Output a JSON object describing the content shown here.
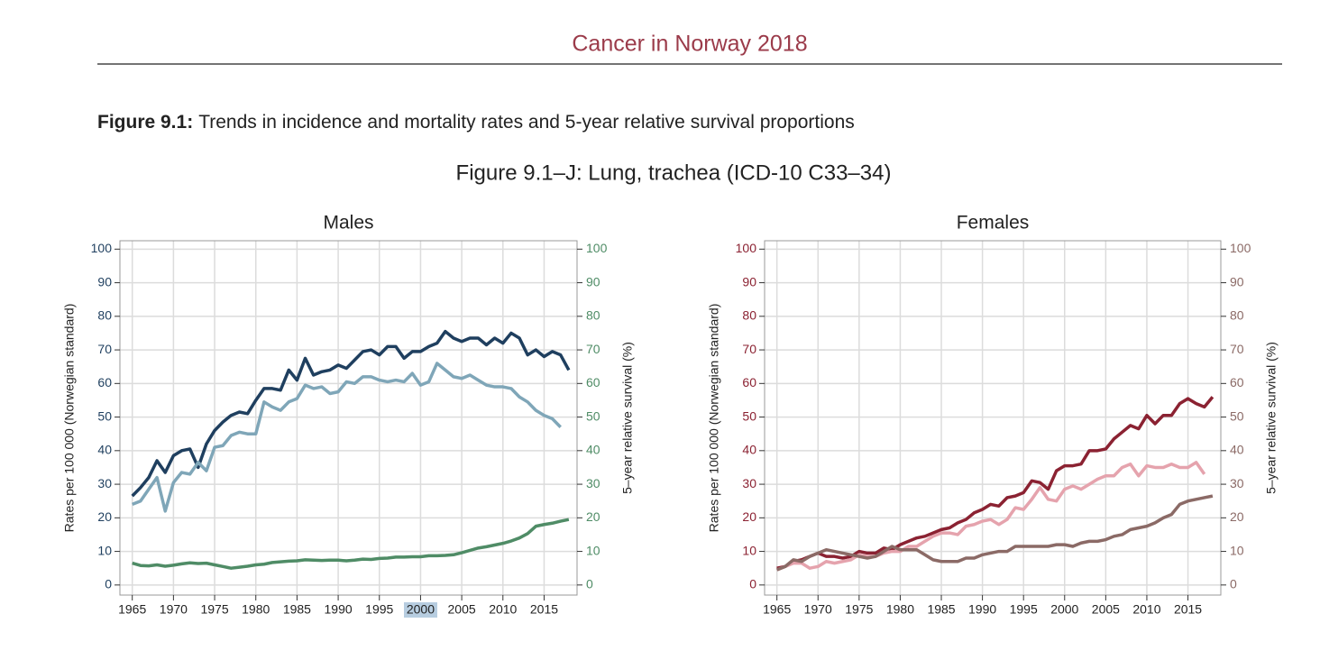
{
  "header": {
    "title": "Cancer in Norway 2018"
  },
  "figure": {
    "label": "Figure 9.1:",
    "caption": "Trends in incidence and mortality rates and 5-year relative survival proportions",
    "subtitle": "Figure 9.1–J: Lung, trachea (ICD-10 C33–34)"
  },
  "chart_data": [
    {
      "type": "line",
      "title": "Males",
      "ylabel": "Rates per 100 000 (Norwegian standard)",
      "y2label": "5–year relative survival (%)",
      "x": [
        1965,
        1966,
        1967,
        1968,
        1969,
        1970,
        1971,
        1972,
        1973,
        1974,
        1975,
        1976,
        1977,
        1978,
        1979,
        1980,
        1981,
        1982,
        1983,
        1984,
        1985,
        1986,
        1987,
        1988,
        1989,
        1990,
        1991,
        1992,
        1993,
        1994,
        1995,
        1996,
        1997,
        1998,
        1999,
        2000,
        2001,
        2002,
        2003,
        2004,
        2005,
        2006,
        2007,
        2008,
        2009,
        2010,
        2011,
        2012,
        2013,
        2014,
        2015,
        2016,
        2017,
        2018
      ],
      "xlim": [
        1963.5,
        2019
      ],
      "xticks": [
        1965,
        1970,
        1975,
        1980,
        1985,
        1990,
        1995,
        2000,
        2005,
        2010,
        2015
      ],
      "ylim": [
        -3,
        102.5
      ],
      "yticks": [
        0,
        10,
        20,
        30,
        40,
        50,
        60,
        70,
        80,
        90,
        100
      ],
      "y2lim": [
        -3,
        102.5
      ],
      "y2ticks": [
        0,
        10,
        20,
        30,
        40,
        50,
        60,
        70,
        80,
        90,
        100
      ],
      "grid": true,
      "series": [
        {
          "color": "#1f3f5f",
          "values": [
            26.5,
            29,
            32,
            37,
            33.5,
            38.5,
            40,
            40.5,
            35,
            42,
            46,
            48.5,
            50.5,
            51.5,
            51,
            55,
            58.5,
            58.5,
            58,
            64,
            61,
            67.5,
            62.5,
            63.5,
            64,
            65.5,
            64.5,
            67,
            69.5,
            70,
            68.5,
            71,
            71,
            67.5,
            69.5,
            69.5,
            71,
            72,
            75.5,
            73.5,
            72.5,
            73.5,
            73.5,
            71.5,
            73.5,
            72,
            75,
            73.5,
            68.5,
            70,
            68,
            69.5,
            68.5,
            64
          ]
        },
        {
          "color": "#7fa6b8",
          "values": [
            24,
            25,
            28.5,
            32,
            22,
            30.5,
            33.5,
            33,
            36.5,
            34,
            41,
            41.5,
            44.5,
            45.5,
            45,
            45,
            54.5,
            53,
            52,
            54.5,
            55.5,
            59.5,
            58.5,
            59,
            57,
            57.5,
            60.5,
            60,
            62,
            62,
            61,
            60.5,
            61,
            60.5,
            63,
            59.5,
            60.5,
            66,
            64,
            62,
            61.5,
            62.5,
            61,
            59.5,
            59,
            59,
            58.5,
            56,
            54.5,
            52,
            50.5,
            49.5,
            47,
            null
          ]
        },
        {
          "color": "#4f8c66",
          "axis": "y2",
          "values": [
            6.5,
            5.8,
            5.7,
            6,
            5.6,
            5.9,
            6.3,
            6.6,
            6.4,
            6.5,
            6,
            5.5,
            5,
            5.3,
            5.6,
            6,
            6.2,
            6.7,
            6.9,
            7.1,
            7.2,
            7.5,
            7.4,
            7.3,
            7.4,
            7.4,
            7.2,
            7.4,
            7.7,
            7.6,
            7.9,
            8,
            8.3,
            8.3,
            8.4,
            8.4,
            8.7,
            8.7,
            8.8,
            9,
            9.6,
            10.3,
            11,
            11.4,
            11.9,
            12.4,
            13.1,
            14,
            15.3,
            17.5,
            18,
            18.4,
            19,
            19.5
          ]
        }
      ]
    },
    {
      "type": "line",
      "title": "Females",
      "ylabel": "Rates per 100 000 (Norwegian standard)",
      "y2label": "5–year relative survival (%)",
      "x": [
        1965,
        1966,
        1967,
        1968,
        1969,
        1970,
        1971,
        1972,
        1973,
        1974,
        1975,
        1976,
        1977,
        1978,
        1979,
        1980,
        1981,
        1982,
        1983,
        1984,
        1985,
        1986,
        1987,
        1988,
        1989,
        1990,
        1991,
        1992,
        1993,
        1994,
        1995,
        1996,
        1997,
        1998,
        1999,
        2000,
        2001,
        2002,
        2003,
        2004,
        2005,
        2006,
        2007,
        2008,
        2009,
        2010,
        2011,
        2012,
        2013,
        2014,
        2015,
        2016,
        2017,
        2018
      ],
      "xlim": [
        1963.5,
        2019
      ],
      "xticks": [
        1965,
        1970,
        1975,
        1980,
        1985,
        1990,
        1995,
        2000,
        2005,
        2010,
        2015
      ],
      "ylim": [
        -3,
        102.5
      ],
      "yticks": [
        0,
        10,
        20,
        30,
        40,
        50,
        60,
        70,
        80,
        90,
        100
      ],
      "y2lim": [
        -3,
        102.5
      ],
      "y2ticks": [
        0,
        10,
        20,
        30,
        40,
        50,
        60,
        70,
        80,
        90,
        100
      ],
      "grid": true,
      "series": [
        {
          "color": "#8b2232",
          "values": [
            5,
            5.5,
            7,
            7.5,
            8.5,
            9.5,
            8.5,
            8.5,
            8,
            8.5,
            10,
            9.5,
            9.5,
            11,
            10.5,
            12,
            13,
            14,
            14.5,
            15.5,
            16.5,
            17,
            18.5,
            19.5,
            21.5,
            22.5,
            24,
            23.5,
            26,
            26.5,
            27.5,
            31,
            30.5,
            28.5,
            34,
            35.5,
            35.5,
            36,
            40,
            40,
            40.5,
            43.5,
            45.5,
            47.5,
            46.5,
            50.5,
            48,
            50.5,
            50.5,
            54,
            55.5,
            54,
            53,
            56
          ]
        },
        {
          "color": "#e5a3ad",
          "values": [
            4.5,
            5.5,
            6.5,
            6.5,
            5,
            5.5,
            7,
            6.5,
            7,
            7.5,
            9,
            8.5,
            8.5,
            9.5,
            10,
            10,
            11.5,
            11.5,
            13,
            14.5,
            15.5,
            15.5,
            15,
            17.5,
            18,
            19,
            19.5,
            18,
            19.5,
            23,
            22.5,
            25.5,
            29,
            25.5,
            25,
            28.5,
            29.5,
            28.5,
            30,
            31.5,
            32.5,
            32.5,
            35,
            36,
            32.5,
            35.5,
            35,
            35,
            36,
            35,
            35,
            36.5,
            33,
            null
          ]
        },
        {
          "color": "#8b6a66",
          "axis": "y2",
          "values": [
            4.5,
            5.5,
            7.5,
            7,
            8.5,
            9.5,
            10.5,
            10,
            9.5,
            9,
            8.5,
            8,
            8.5,
            10,
            11.5,
            10.5,
            10.5,
            10.5,
            9,
            7.5,
            7,
            7,
            7,
            8,
            8,
            9,
            9.5,
            10,
            10,
            11.5,
            11.5,
            11.5,
            11.5,
            11.5,
            12,
            12,
            11.5,
            12.5,
            13,
            13,
            13.5,
            14.5,
            15,
            16.5,
            17,
            17.5,
            18.5,
            20,
            21,
            24,
            25,
            25.5,
            26,
            26.5
          ]
        }
      ]
    }
  ]
}
